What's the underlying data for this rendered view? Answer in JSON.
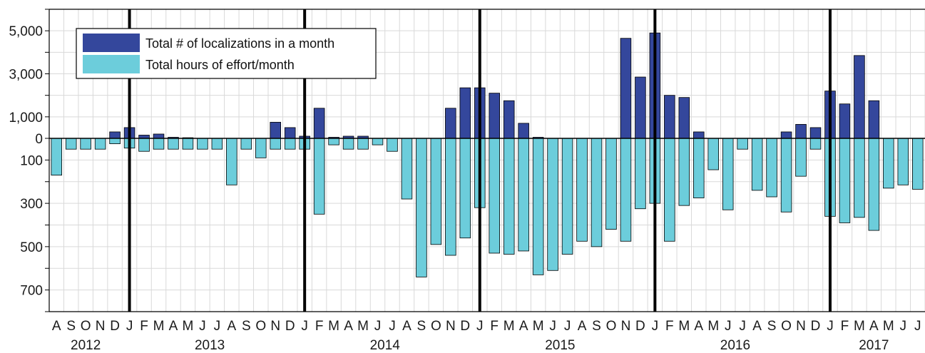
{
  "chart_data": {
    "type": "bar",
    "colors": {
      "localizations": "#34479c",
      "effort": "#6ccddb",
      "grid": "#d9d9d9",
      "year_divider": "#000000"
    },
    "legend": {
      "placement": "top-left",
      "entries": [
        "Total # of localizations in a month",
        "Total hours of effort/month"
      ]
    },
    "grid": true,
    "y_axis": {
      "upper": {
        "scale": "localizations",
        "ylim": [
          0,
          6000
        ],
        "tick_labels": [
          "0",
          "1,000",
          "3,000",
          "5,000"
        ],
        "tick_values": [
          0,
          1000,
          3000,
          5000
        ],
        "minor_ticks": [
          2000,
          4000,
          6000
        ]
      },
      "lower": {
        "scale": "hours",
        "ylim": [
          0,
          800
        ],
        "tick_labels": [
          "100",
          "300",
          "500",
          "700"
        ],
        "tick_values": [
          100,
          300,
          500,
          700
        ],
        "minor_ticks": [
          200,
          400,
          600,
          800
        ]
      }
    },
    "month_labels": [
      "A",
      "S",
      "O",
      "N",
      "D",
      "J",
      "F",
      "M",
      "A",
      "M",
      "J",
      "J",
      "A",
      "S",
      "O",
      "N",
      "D",
      "J",
      "F",
      "M",
      "A",
      "M",
      "J",
      "J",
      "A",
      "S",
      "O",
      "N",
      "D",
      "J",
      "F",
      "M",
      "A",
      "M",
      "J",
      "J",
      "A",
      "S",
      "O",
      "N",
      "D",
      "J",
      "F",
      "M",
      "A",
      "M",
      "J",
      "J",
      "A",
      "S",
      "O",
      "N",
      "D",
      "J",
      "F",
      "M",
      "A",
      "M",
      "J",
      "J"
    ],
    "years": [
      {
        "label": "2012",
        "start_index": 0,
        "end_index": 4
      },
      {
        "label": "2013",
        "start_index": 5,
        "end_index": 16
      },
      {
        "label": "2014",
        "start_index": 17,
        "end_index": 28
      },
      {
        "label": "2015",
        "start_index": 29,
        "end_index": 40
      },
      {
        "label": "2016",
        "start_index": 41,
        "end_index": 52
      },
      {
        "label": "2017",
        "start_index": 53,
        "end_index": 59
      }
    ],
    "year_divider_indices": [
      5,
      17,
      29,
      41,
      53
    ],
    "series": [
      {
        "name": "Total # of localizations in a month",
        "values": [
          0,
          0,
          0,
          0,
          300,
          500,
          150,
          200,
          50,
          30,
          0,
          0,
          0,
          0,
          0,
          750,
          500,
          100,
          1400,
          50,
          100,
          100,
          0,
          0,
          0,
          0,
          0,
          1400,
          2350,
          2350,
          2100,
          1750,
          700,
          50,
          0,
          0,
          0,
          0,
          0,
          4650,
          2850,
          4900,
          2000,
          1900,
          300,
          0,
          0,
          0,
          0,
          0,
          300,
          650,
          500,
          2200,
          1600,
          3850,
          1750,
          0,
          0,
          0
        ]
      },
      {
        "name": "Total hours of effort/month",
        "values": [
          170,
          50,
          50,
          50,
          25,
          45,
          60,
          50,
          50,
          50,
          50,
          50,
          215,
          50,
          90,
          50,
          50,
          50,
          350,
          30,
          50,
          50,
          30,
          60,
          280,
          640,
          490,
          540,
          460,
          320,
          530,
          535,
          520,
          630,
          610,
          535,
          475,
          500,
          420,
          475,
          325,
          300,
          475,
          310,
          275,
          145,
          330,
          50,
          240,
          270,
          340,
          175,
          50,
          360,
          390,
          365,
          425,
          230,
          215,
          235
        ]
      }
    ]
  }
}
